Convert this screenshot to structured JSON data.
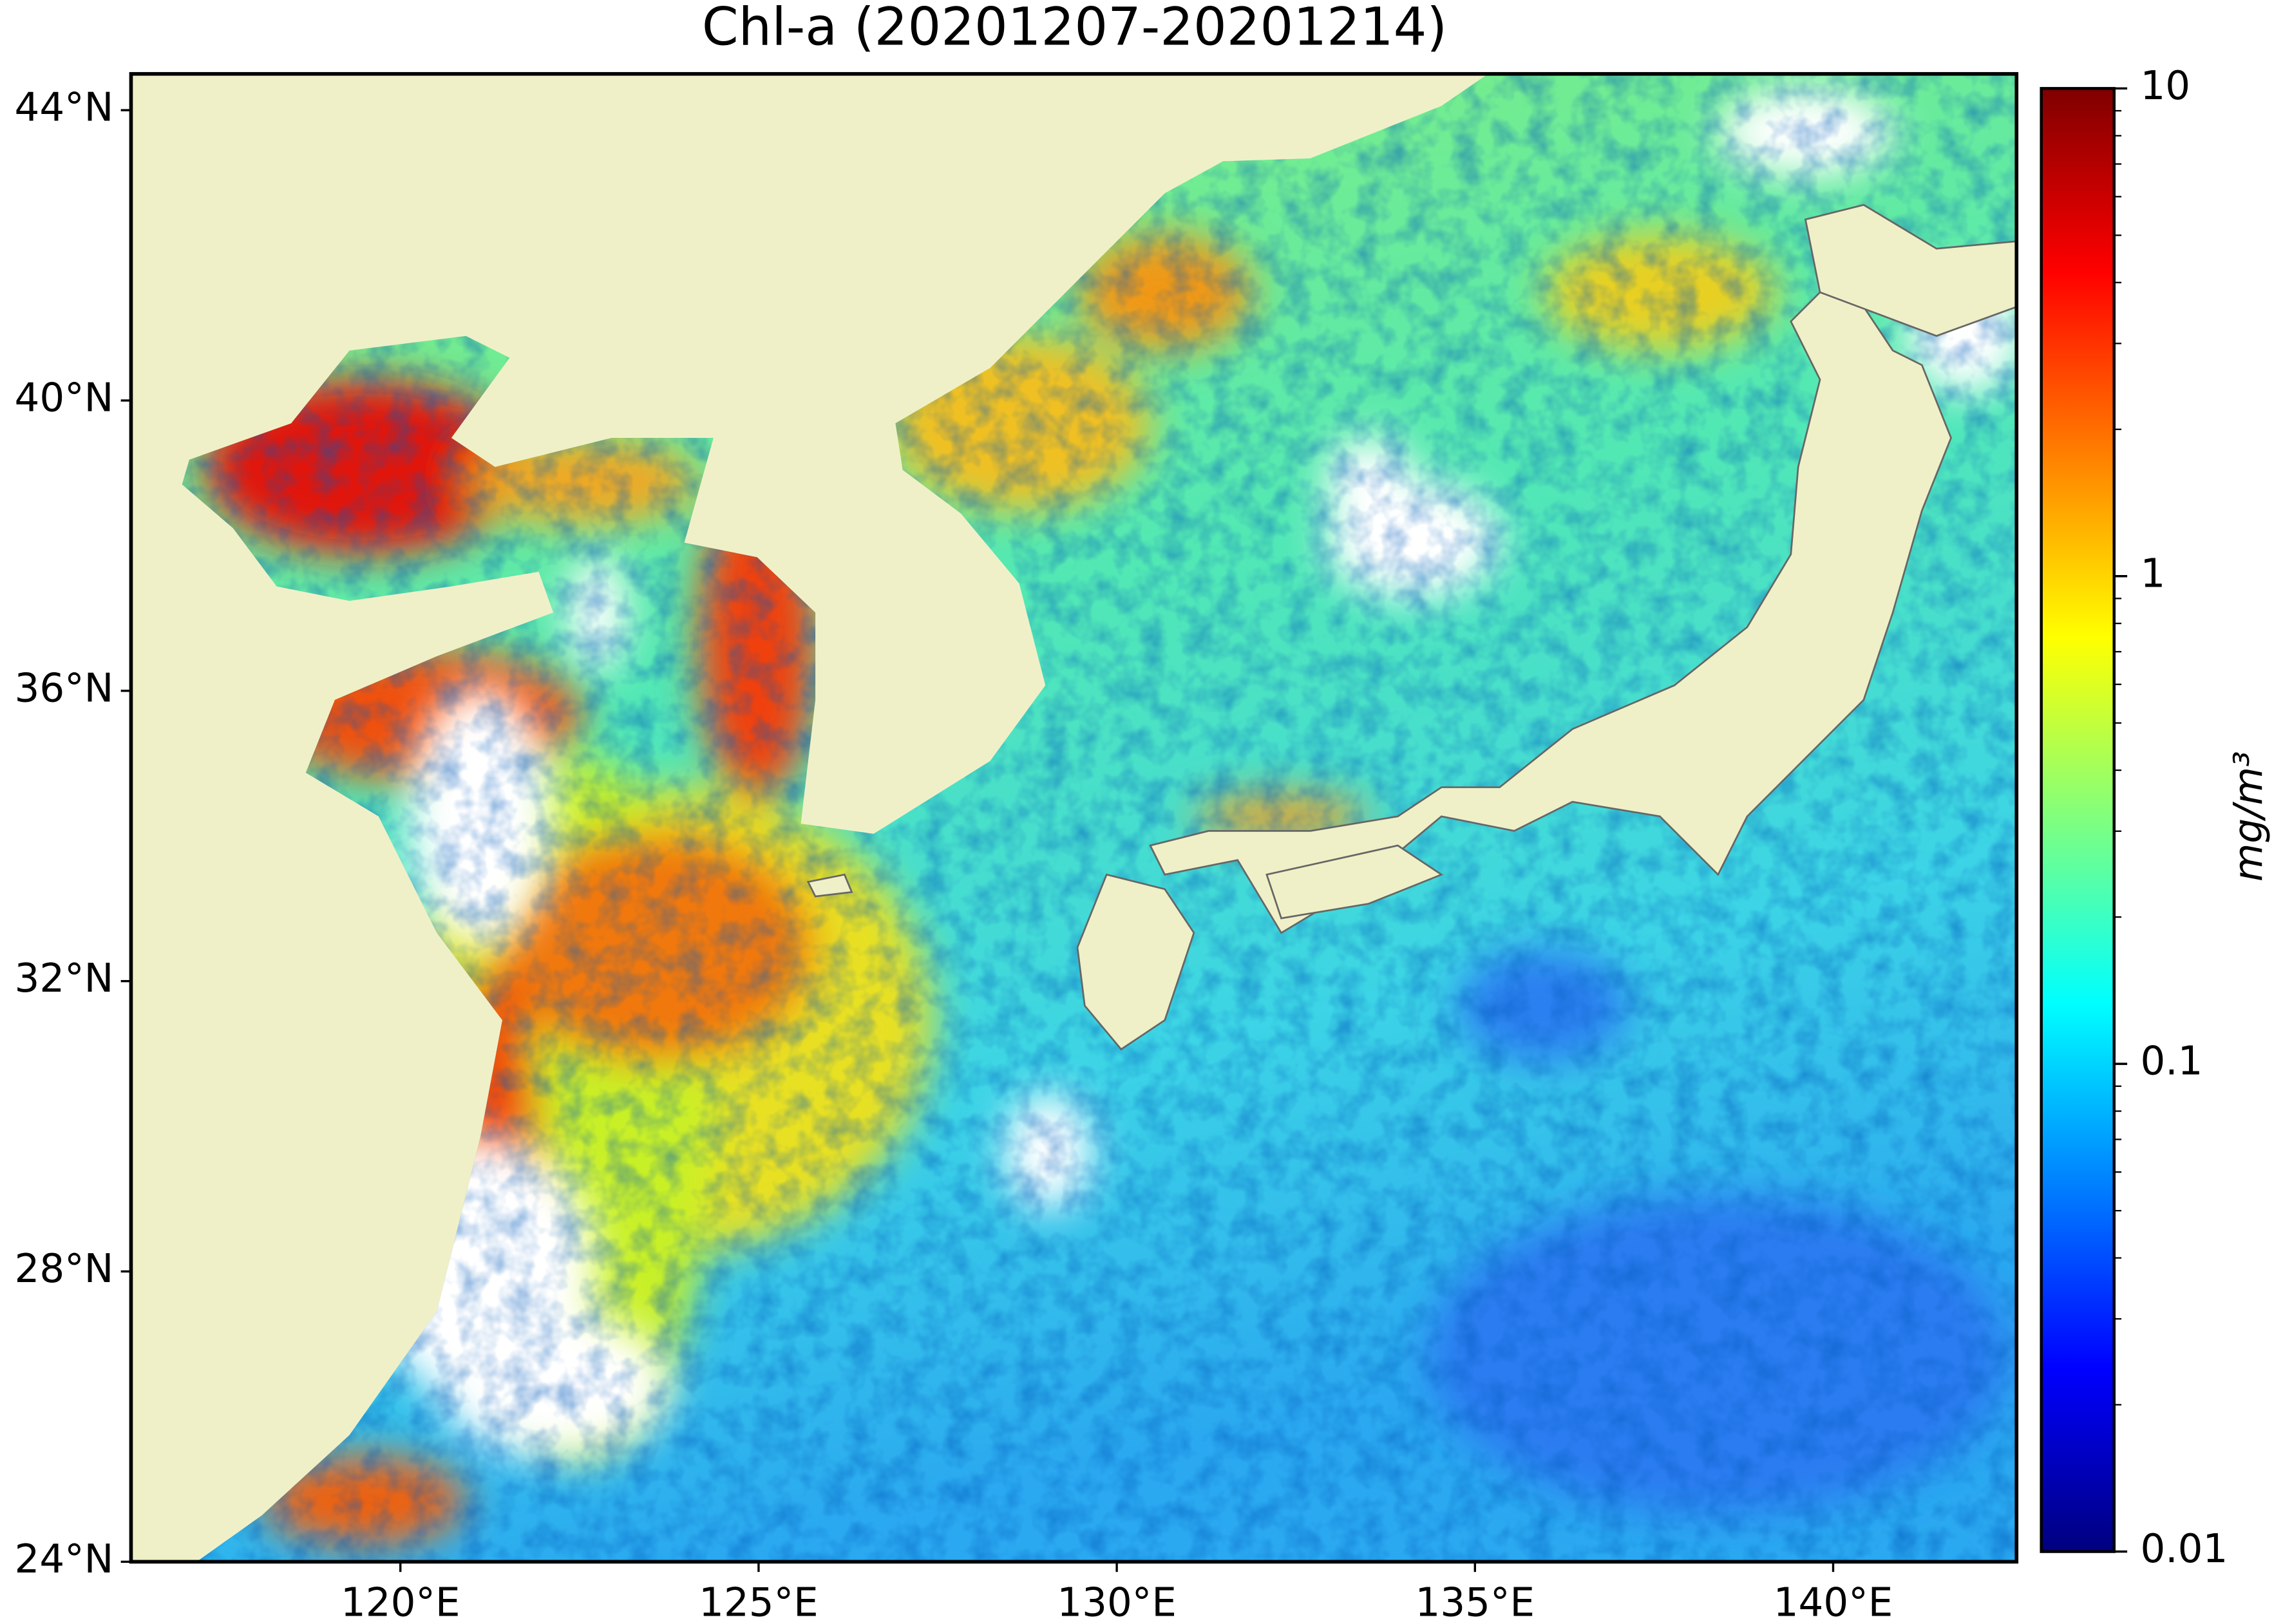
{
  "chart_data": {
    "type": "map",
    "title": "Chl-a (20201207-20201214)",
    "xlim": [
      116.24,
      142.56
    ],
    "ylim": [
      24,
      44.5
    ],
    "xticks": [
      {
        "value": 120,
        "label": "120°E"
      },
      {
        "value": 125,
        "label": "125°E"
      },
      {
        "value": 130,
        "label": "130°E"
      },
      {
        "value": 135,
        "label": "135°E"
      },
      {
        "value": 140,
        "label": "140°E"
      }
    ],
    "yticks": [
      {
        "value": 24,
        "label": "24°N"
      },
      {
        "value": 28,
        "label": "28°N"
      },
      {
        "value": 32,
        "label": "32°N"
      },
      {
        "value": 36,
        "label": "36°N"
      },
      {
        "value": 40,
        "label": "40°N"
      },
      {
        "value": 44,
        "label": "44°N"
      }
    ],
    "colorbar": {
      "label": "mg/m³",
      "scale": "log",
      "lim": [
        0.01,
        10
      ],
      "ticks": [
        0.01,
        0.1,
        1,
        10
      ],
      "minor_ticks": [
        0.02,
        0.03,
        0.04,
        0.05,
        0.06,
        0.07,
        0.08,
        0.09,
        0.2,
        0.3,
        0.4,
        0.5,
        0.6,
        0.7,
        0.8,
        0.9,
        2,
        3,
        4,
        5,
        6,
        7,
        8,
        9
      ],
      "colormap": [
        "#00007f",
        "#0000ff",
        "#007fff",
        "#00ffff",
        "#7fff7f",
        "#ffff00",
        "#ff7f00",
        "#ff0000",
        "#7f0000"
      ]
    }
  }
}
